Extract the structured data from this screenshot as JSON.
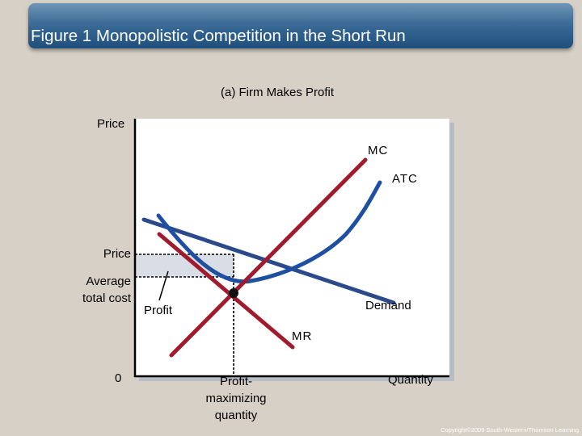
{
  "slide": {
    "title": "Figure 1 Monopolistic Competition in the Short Run",
    "copyright": "Copyright©2009 South-Western/Thomson Learning"
  },
  "diagram": {
    "panel_title": "(a) Firm Makes Profit",
    "y_axis_label": "Price",
    "x_axis_label": "Quantity",
    "origin_label": "0",
    "price_label": "Price",
    "atc_label": "Average total cost",
    "atc_label_line1": "Average",
    "atc_label_line2": "total cost",
    "quantity_label_line1": "Profit-",
    "quantity_label_line2": "maximizing",
    "quantity_label_line3": "quantity",
    "profit_label": "Profit",
    "curves": {
      "mc": "MC",
      "atc": "ATC",
      "demand": "Demand",
      "mr": "MR"
    },
    "colors": {
      "mc": "#a01c2c",
      "mr": "#a01c2c",
      "atc": "#1e4fa0",
      "demand": "#2a4a8c",
      "profit_area": "#d8dde6"
    }
  }
}
